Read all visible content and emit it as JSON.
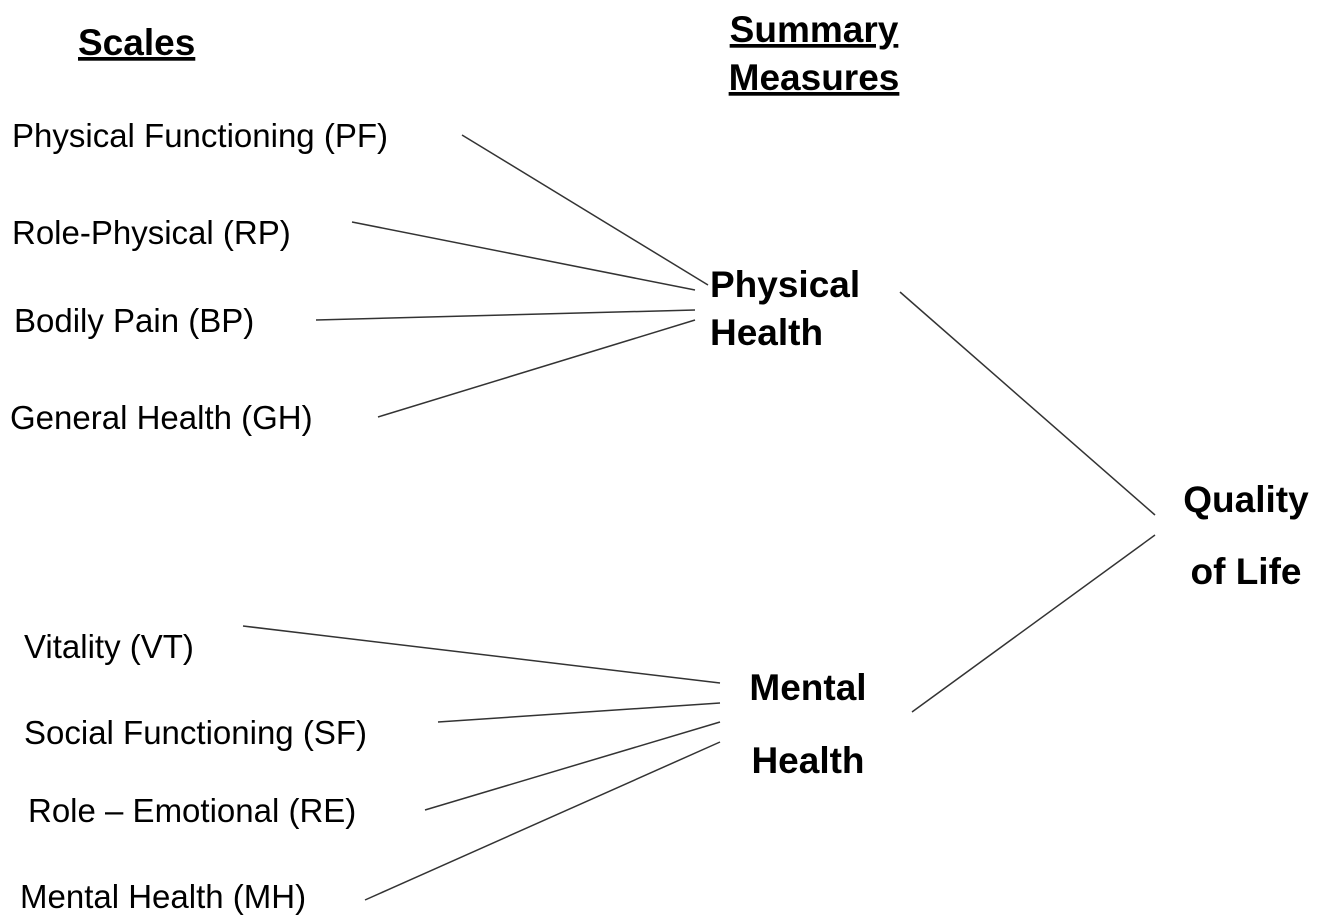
{
  "headers": {
    "scales": "Scales",
    "summary": [
      "Summary",
      "Measures"
    ]
  },
  "scales": [
    "Physical Functioning (PF)",
    "Role-Physical (RP)",
    "Bodily Pain (BP)",
    "General Health (GH)",
    "Vitality (VT)",
    "Social Functioning (SF)",
    "Role – Emotional (RE)",
    "Mental Health (MH)"
  ],
  "summary_measures": [
    [
      "Physical",
      "Health"
    ],
    [
      "Mental",
      "Health"
    ]
  ],
  "outcome": [
    "Quality",
    "of Life"
  ]
}
